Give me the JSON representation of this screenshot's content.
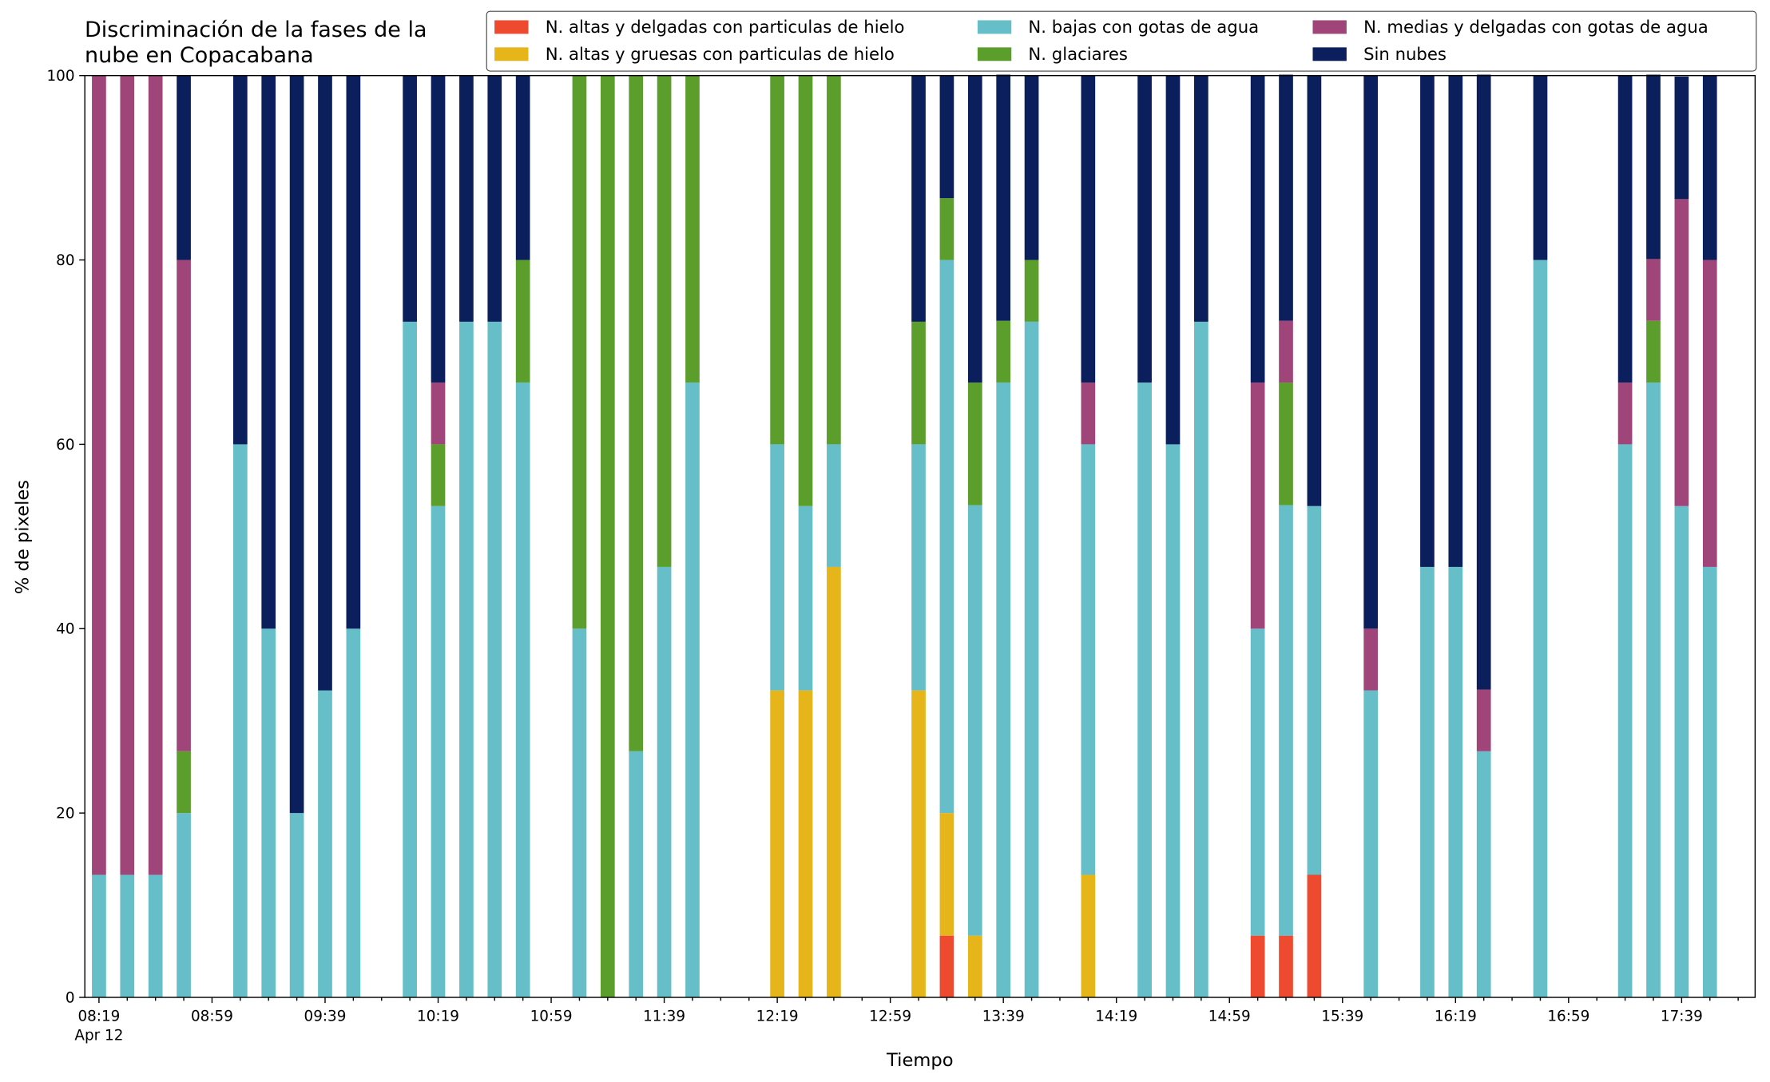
{
  "chart_data": {
    "type": "stacked_bar",
    "title": "Discriminación de la fases de la\nnube en Copacabana",
    "xlabel": "Tiempo",
    "ylabel": "% de pixeles",
    "x_date_label": "Apr 12",
    "x": [
      "08:19",
      "08:29",
      "08:39",
      "08:49",
      "09:09",
      "09:19",
      "09:29",
      "09:39",
      "09:49",
      "10:09",
      "10:19",
      "10:29",
      "10:39",
      "10:49",
      "11:09",
      "11:19",
      "11:29",
      "11:39",
      "11:49",
      "12:19",
      "12:29",
      "12:39",
      "13:09",
      "13:19",
      "13:29",
      "13:39",
      "13:49",
      "14:09",
      "14:29",
      "14:39",
      "14:49",
      "15:09",
      "15:19",
      "15:29",
      "15:49",
      "16:09",
      "16:19",
      "16:29",
      "16:49",
      "17:19",
      "17:29",
      "17:39",
      "17:49"
    ],
    "series": [
      {
        "name": "N. altas y delgadas con particulas de hielo",
        "color": "#ee4a2f",
        "values": [
          0,
          0,
          0,
          0,
          0,
          0,
          0,
          0,
          0,
          0,
          0,
          0,
          0,
          0,
          0,
          0,
          0,
          0,
          0,
          0,
          0,
          0,
          0,
          6.7,
          0,
          0,
          0,
          0,
          0,
          0,
          0,
          6.7,
          6.7,
          13.3,
          0,
          0,
          0,
          0,
          0,
          0,
          0,
          0,
          0
        ]
      },
      {
        "name": "N. altas y gruesas con particulas de hielo",
        "color": "#e5b51a",
        "values": [
          0,
          0,
          0,
          0,
          0,
          0,
          0,
          0,
          0,
          0,
          0,
          0,
          0,
          0,
          0,
          0,
          0,
          0,
          0,
          33.3,
          33.3,
          46.7,
          33.3,
          13.3,
          6.7,
          0,
          0,
          13.3,
          0,
          0,
          0,
          0,
          0,
          0,
          0,
          0,
          0,
          0,
          0,
          0,
          0,
          0,
          0
        ]
      },
      {
        "name": "N. bajas con gotas de agua",
        "color": "#66bec8",
        "values": [
          13.3,
          13.3,
          13.3,
          20,
          60,
          40,
          20,
          33.3,
          40,
          73.3,
          53.3,
          73.3,
          73.3,
          66.7,
          40,
          0,
          26.7,
          46.7,
          66.7,
          26.7,
          20,
          13.3,
          26.7,
          60,
          46.7,
          66.7,
          73.3,
          46.7,
          66.7,
          60,
          73.3,
          33.3,
          46.7,
          40,
          33.3,
          46.7,
          46.7,
          26.7,
          80,
          60,
          66.7,
          53.3,
          46.7
        ]
      },
      {
        "name": "N. glaciares",
        "color": "#5c9e2c",
        "values": [
          0,
          0,
          0,
          6.7,
          0,
          0,
          0,
          0,
          0,
          0,
          6.7,
          0,
          0,
          13.3,
          60,
          100,
          73.3,
          53.3,
          33.3,
          40,
          46.7,
          40,
          13.3,
          6.7,
          13.3,
          6.7,
          6.7,
          0,
          0,
          0,
          0,
          0,
          13.3,
          0,
          0,
          0,
          0,
          0,
          0,
          0,
          6.7,
          0,
          0
        ]
      },
      {
        "name": "N. medias y delgadas con gotas de agua",
        "color": "#a0457a",
        "values": [
          86.7,
          86.7,
          86.7,
          53.3,
          0,
          0,
          0,
          0,
          0,
          0,
          6.7,
          0,
          0,
          0,
          0,
          0,
          0,
          0,
          0,
          0,
          0,
          0,
          0,
          0,
          0,
          0,
          0,
          6.7,
          0,
          0,
          0,
          26.7,
          6.7,
          0,
          6.7,
          0,
          0,
          6.7,
          0,
          6.7,
          6.7,
          33.3,
          33.3
        ]
      },
      {
        "name": "Sin nubes",
        "color": "#0b1f5c",
        "values": [
          0,
          0,
          0,
          20,
          40,
          60,
          80,
          66.7,
          60,
          26.7,
          33.3,
          26.7,
          26.7,
          20,
          0,
          0,
          0,
          0,
          0,
          0,
          0,
          0,
          26.7,
          13.3,
          33.3,
          26.7,
          20,
          33.3,
          33.3,
          40,
          26.7,
          33.3,
          26.7,
          46.7,
          60,
          53.3,
          53.3,
          66.7,
          20,
          33.3,
          20,
          13.3,
          20
        ]
      }
    ],
    "xlim": [
      "08:14",
      "18:05"
    ],
    "xticks": [
      "08:19",
      "08:59",
      "09:39",
      "10:19",
      "10:59",
      "11:39",
      "12:19",
      "12:59",
      "13:39",
      "14:19",
      "14:59",
      "15:39",
      "16:19",
      "16:59",
      "17:39"
    ],
    "xminorticks": [
      "08:29",
      "08:39",
      "08:49",
      "09:09",
      "09:19",
      "09:29",
      "09:49",
      "09:59",
      "10:09",
      "10:29",
      "10:39",
      "10:49",
      "11:09",
      "11:19",
      "11:29",
      "11:49",
      "11:59",
      "12:09",
      "12:29",
      "12:39",
      "12:49",
      "13:09",
      "13:19",
      "13:29",
      "13:49",
      "13:59",
      "14:09",
      "14:29",
      "14:39",
      "14:49",
      "15:09",
      "15:19",
      "15:29",
      "15:49",
      "15:59",
      "16:09",
      "16:29",
      "16:39",
      "16:49",
      "17:09",
      "17:19",
      "17:29",
      "17:49",
      "17:59"
    ],
    "ylim": [
      0,
      100
    ],
    "yticks": [
      0,
      20,
      40,
      60,
      80,
      100
    ],
    "legend": "top right",
    "grid": false
  }
}
